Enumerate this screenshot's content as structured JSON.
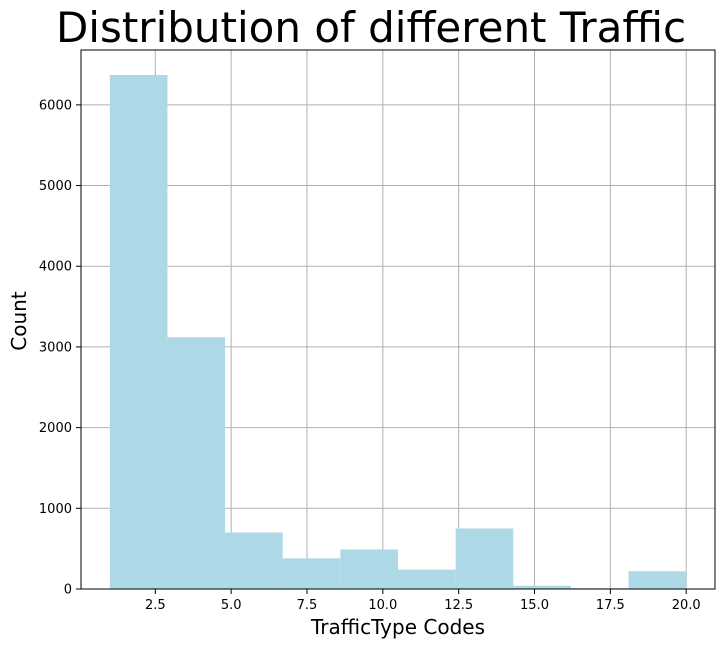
{
  "chart_data": {
    "type": "bar",
    "title": "Distribution of different Traffic",
    "xlabel": "TrafficType Codes",
    "ylabel": "Count",
    "xlim": [
      0.05,
      20.95
    ],
    "ylim": [
      0,
      6680
    ],
    "grid": true,
    "bar_color": "#add8e6",
    "bins": [
      {
        "x0": 1.0,
        "x1": 2.9,
        "count": 6370
      },
      {
        "x0": 2.9,
        "x1": 4.8,
        "count": 3120
      },
      {
        "x0": 4.8,
        "x1": 6.7,
        "count": 700
      },
      {
        "x0": 6.7,
        "x1": 8.6,
        "count": 380
      },
      {
        "x0": 8.6,
        "x1": 10.5,
        "count": 490
      },
      {
        "x0": 10.5,
        "x1": 12.4,
        "count": 240
      },
      {
        "x0": 12.4,
        "x1": 14.3,
        "count": 750
      },
      {
        "x0": 14.3,
        "x1": 16.2,
        "count": 40
      },
      {
        "x0": 16.2,
        "x1": 18.1,
        "count": 10
      },
      {
        "x0": 18.1,
        "x1": 20.0,
        "count": 220
      }
    ],
    "xticks": [
      {
        "value": 2.5,
        "label": "2.5"
      },
      {
        "value": 5.0,
        "label": "5.0"
      },
      {
        "value": 7.5,
        "label": "7.5"
      },
      {
        "value": 10.0,
        "label": "10.0"
      },
      {
        "value": 12.5,
        "label": "12.5"
      },
      {
        "value": 15.0,
        "label": "15.0"
      },
      {
        "value": 17.5,
        "label": "17.5"
      },
      {
        "value": 20.0,
        "label": "20.0"
      }
    ],
    "yticks": [
      {
        "value": 0,
        "label": "0"
      },
      {
        "value": 1000,
        "label": "1000"
      },
      {
        "value": 2000,
        "label": "2000"
      },
      {
        "value": 3000,
        "label": "3000"
      },
      {
        "value": 4000,
        "label": "4000"
      },
      {
        "value": 5000,
        "label": "5000"
      },
      {
        "value": 6000,
        "label": "6000"
      }
    ]
  }
}
